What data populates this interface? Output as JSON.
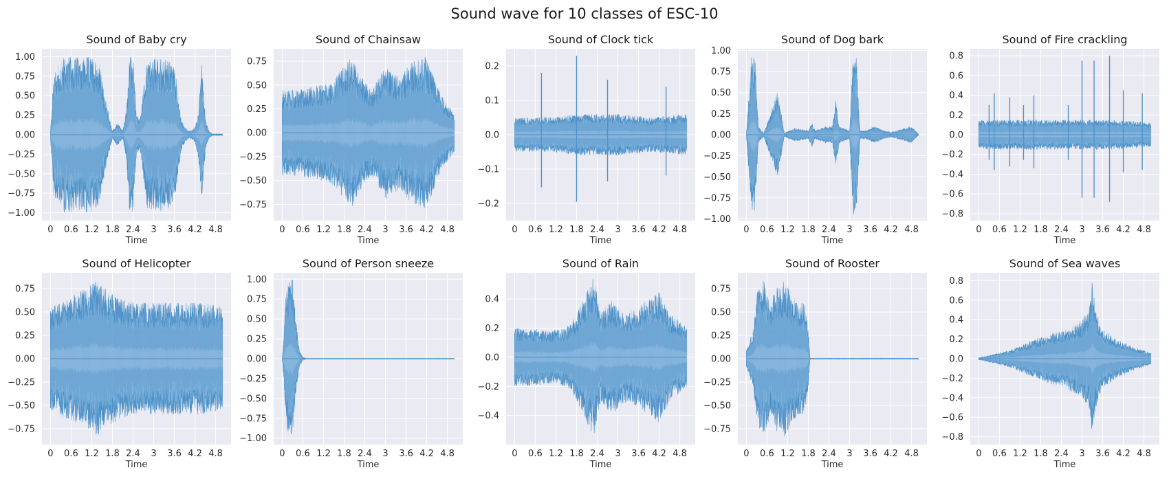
{
  "suptitle": "Sound wave for 10 classes of ESC-10",
  "chart_data": [
    {
      "type": "area",
      "title": "Sound of Baby cry",
      "xlabel": "Time",
      "xlim": [
        0,
        5
      ],
      "ylim": [
        -1.1,
        1.1
      ],
      "xticks": [
        "0",
        "0.6",
        "1.2",
        "1.8",
        "2.4",
        "3",
        "3.6",
        "4.2",
        "4.8"
      ],
      "yticks": [
        -1.0,
        -0.75,
        -0.5,
        -0.25,
        0.0,
        0.25,
        0.5,
        0.75,
        1.0
      ],
      "yticklabels": [
        "−1.00",
        "−0.75",
        "−0.50",
        "−0.25",
        "0.00",
        "0.25",
        "0.50",
        "0.75",
        "1.00"
      ],
      "envelope": {
        "t": [
          0,
          0.1,
          0.4,
          0.8,
          1.2,
          1.4,
          1.6,
          1.8,
          1.95,
          2.1,
          2.2,
          2.3,
          2.4,
          2.5,
          2.6,
          2.8,
          3.2,
          3.6,
          3.8,
          3.9,
          4.0,
          4.1,
          4.2,
          4.3,
          4.4,
          4.5,
          4.6,
          4.7,
          5.0
        ],
        "amp": [
          0.05,
          0.8,
          1.0,
          1.0,
          1.0,
          0.95,
          0.45,
          0.05,
          0.15,
          0.05,
          0.3,
          1.0,
          1.0,
          0.25,
          0.2,
          0.95,
          1.0,
          0.9,
          0.2,
          0.1,
          0.05,
          0.05,
          0.1,
          0.3,
          0.9,
          0.2,
          0.05,
          0.01,
          0.01
        ]
      }
    },
    {
      "type": "area",
      "title": "Sound of Chainsaw",
      "xlabel": "Time",
      "xlim": [
        0,
        5
      ],
      "ylim": [
        -0.92,
        0.88
      ],
      "xticks": [
        "0",
        "0.6",
        "1.2",
        "1.8",
        "2.4",
        "3",
        "3.6",
        "4.2",
        "4.8"
      ],
      "yticks": [
        -0.75,
        -0.5,
        -0.25,
        0.0,
        0.25,
        0.5,
        0.75
      ],
      "yticklabels": [
        "−0.75",
        "−0.50",
        "−0.25",
        "0.00",
        "0.25",
        "0.50",
        "0.75"
      ],
      "envelope": {
        "t": [
          0,
          0.5,
          1.0,
          1.5,
          2.0,
          2.3,
          2.6,
          3.0,
          3.4,
          3.8,
          4.2,
          4.6,
          5.0
        ],
        "amp": [
          0.45,
          0.45,
          0.5,
          0.55,
          0.8,
          0.6,
          0.45,
          0.7,
          0.6,
          0.75,
          0.8,
          0.4,
          0.2
        ]
      }
    },
    {
      "type": "area",
      "title": "Sound of Clock tick",
      "xlabel": "Time",
      "xlim": [
        0,
        5
      ],
      "ylim": [
        -0.25,
        0.25
      ],
      "xticks": [
        "0",
        "0.6",
        "1.2",
        "1.8",
        "2.4",
        "3",
        "3.6",
        "4.2",
        "4.8"
      ],
      "yticks": [
        -0.2,
        -0.1,
        0.0,
        0.1,
        0.2
      ],
      "yticklabels": [
        "−0.2",
        "−0.1",
        "0.0",
        "0.1",
        "0.2"
      ],
      "envelope": {
        "t": [
          0,
          1.0,
          2.0,
          3.0,
          4.0,
          5.0
        ],
        "amp": [
          0.05,
          0.05,
          0.06,
          0.06,
          0.05,
          0.06
        ]
      },
      "spikes": [
        {
          "t": 0.78,
          "a": 0.18
        },
        {
          "t": 1.8,
          "a": 0.23
        },
        {
          "t": 2.7,
          "a": 0.16
        },
        {
          "t": 4.4,
          "a": 0.14
        }
      ]
    },
    {
      "type": "area",
      "title": "Sound of Dog bark",
      "xlabel": "Time",
      "xlim": [
        0,
        5
      ],
      "ylim": [
        -1.02,
        1.02
      ],
      "xticks": [
        "0",
        "0.6",
        "1.2",
        "1.8",
        "2.4",
        "3",
        "3.6",
        "4.2",
        "4.8"
      ],
      "yticks": [
        -1.0,
        -0.75,
        -0.5,
        -0.25,
        0.0,
        0.25,
        0.5,
        0.75,
        1.0
      ],
      "yticklabels": [
        "−1.00",
        "−0.75",
        "−0.50",
        "−0.25",
        "0.00",
        "0.25",
        "0.50",
        "0.75",
        "1.00"
      ],
      "envelope": {
        "t": [
          0,
          0.15,
          0.25,
          0.35,
          0.5,
          0.9,
          1.0,
          1.1,
          1.4,
          1.8,
          1.9,
          2.0,
          2.3,
          2.5,
          2.6,
          2.7,
          3.0,
          3.1,
          3.2,
          3.3,
          3.5,
          3.7,
          4.0,
          4.2,
          4.4,
          4.6,
          4.8,
          4.9,
          5.0
        ],
        "amp": [
          0.02,
          0.95,
          0.95,
          0.1,
          0.02,
          0.5,
          0.3,
          0.02,
          0.08,
          0.05,
          0.15,
          0.05,
          0.1,
          0.1,
          0.4,
          0.1,
          0.05,
          0.95,
          0.95,
          0.05,
          0.05,
          0.1,
          0.05,
          0.03,
          0.05,
          0.08,
          0.1,
          0.05,
          0.01
        ]
      }
    },
    {
      "type": "area",
      "title": "Sound of Fire crackling",
      "xlabel": "Time",
      "xlim": [
        0,
        5
      ],
      "ylim": [
        -0.87,
        0.87
      ],
      "xticks": [
        "0",
        "0.6",
        "1.2",
        "1.8",
        "2.4",
        "3",
        "3.6",
        "4.2",
        "4.8"
      ],
      "yticks": [
        -0.8,
        -0.6,
        -0.4,
        -0.2,
        0.0,
        0.2,
        0.4,
        0.6,
        0.8
      ],
      "yticklabels": [
        "−0.8",
        "−0.6",
        "−0.4",
        "−0.2",
        "0.0",
        "0.2",
        "0.4",
        "0.6",
        "0.8"
      ],
      "envelope": {
        "t": [
          0,
          1.0,
          2.0,
          3.0,
          4.0,
          5.0
        ],
        "amp": [
          0.15,
          0.15,
          0.15,
          0.15,
          0.15,
          0.12
        ]
      },
      "spikes": [
        {
          "t": 0.3,
          "a": 0.3
        },
        {
          "t": 0.45,
          "a": 0.42
        },
        {
          "t": 0.9,
          "a": 0.38
        },
        {
          "t": 1.3,
          "a": 0.3
        },
        {
          "t": 1.6,
          "a": 0.4
        },
        {
          "t": 2.6,
          "a": 0.3
        },
        {
          "t": 3.0,
          "a": 0.75
        },
        {
          "t": 3.35,
          "a": 0.75
        },
        {
          "t": 3.8,
          "a": 0.8
        },
        {
          "t": 4.2,
          "a": 0.45
        },
        {
          "t": 4.75,
          "a": 0.42
        }
      ]
    },
    {
      "type": "area",
      "title": "Sound of Helicopter",
      "xlabel": "Time",
      "xlim": [
        0,
        5
      ],
      "ylim": [
        -0.92,
        0.92
      ],
      "xticks": [
        "0",
        "0.6",
        "1.2",
        "1.8",
        "2.4",
        "3",
        "3.6",
        "4.2",
        "4.8"
      ],
      "yticks": [
        -0.75,
        -0.5,
        -0.25,
        0.0,
        0.25,
        0.5,
        0.75
      ],
      "yticklabels": [
        "−0.75",
        "−0.50",
        "−0.25",
        "0.00",
        "0.25",
        "0.50",
        "0.75"
      ],
      "envelope": {
        "t": [
          0,
          0.5,
          1.0,
          1.3,
          1.6,
          2.0,
          2.5,
          3.0,
          3.5,
          4.0,
          4.5,
          5.0
        ],
        "amp": [
          0.55,
          0.65,
          0.75,
          0.85,
          0.75,
          0.65,
          0.6,
          0.6,
          0.6,
          0.6,
          0.6,
          0.55
        ]
      }
    },
    {
      "type": "area",
      "title": "Sound of Person sneeze",
      "xlabel": "Time",
      "xlim": [
        0,
        5
      ],
      "ylim": [
        -1.08,
        1.08
      ],
      "xticks": [
        "0",
        "0.6",
        "1.2",
        "1.8",
        "2.4",
        "3",
        "3.6",
        "4.2",
        "4.8"
      ],
      "yticks": [
        -1.0,
        -0.75,
        -0.5,
        -0.25,
        0.0,
        0.25,
        0.5,
        0.75,
        1.0
      ],
      "yticklabels": [
        "−1.00",
        "−0.75",
        "−0.50",
        "−0.25",
        "0.00",
        "0.25",
        "0.50",
        "0.75",
        "1.00"
      ],
      "envelope": {
        "t": [
          0,
          0.05,
          0.1,
          0.2,
          0.3,
          0.4,
          0.5,
          0.6,
          0.7,
          5.0
        ],
        "amp": [
          0.02,
          0.3,
          0.8,
          1.0,
          1.0,
          0.5,
          0.1,
          0.02,
          0.005,
          0.005
        ]
      }
    },
    {
      "type": "area",
      "title": "Sound of Rain",
      "xlabel": "Time",
      "xlim": [
        0,
        5
      ],
      "ylim": [
        -0.6,
        0.58
      ],
      "xticks": [
        "0",
        "0.6",
        "1.2",
        "1.8",
        "2.4",
        "3",
        "3.6",
        "4.2",
        "4.8"
      ],
      "yticks": [
        -0.4,
        -0.2,
        0.0,
        0.2,
        0.4
      ],
      "yticklabels": [
        "−0.4",
        "−0.2",
        "0.0",
        "0.2",
        "0.4"
      ],
      "envelope": {
        "t": [
          0,
          0.5,
          1.0,
          1.5,
          1.8,
          2.1,
          2.3,
          2.5,
          2.8,
          3.0,
          3.3,
          3.6,
          3.9,
          4.2,
          4.5,
          4.8,
          5.0
        ],
        "amp": [
          0.2,
          0.2,
          0.18,
          0.2,
          0.3,
          0.45,
          0.55,
          0.3,
          0.4,
          0.35,
          0.3,
          0.35,
          0.4,
          0.45,
          0.3,
          0.25,
          0.2
        ]
      }
    },
    {
      "type": "area",
      "title": "Sound of Rooster",
      "xlabel": "Time",
      "xlim": [
        0,
        5
      ],
      "ylim": [
        -0.92,
        0.92
      ],
      "xticks": [
        "0",
        "0.6",
        "1.2",
        "1.8",
        "2.4",
        "3",
        "3.6",
        "4.2",
        "4.8"
      ],
      "yticks": [
        -0.75,
        -0.5,
        -0.25,
        0.0,
        0.25,
        0.5,
        0.75
      ],
      "yticklabels": [
        "−0.75",
        "−0.50",
        "−0.25",
        "0.00",
        "0.25",
        "0.50",
        "0.75"
      ],
      "envelope": {
        "t": [
          0,
          0.2,
          0.3,
          0.5,
          0.7,
          0.9,
          1.0,
          1.1,
          1.3,
          1.5,
          1.7,
          1.8,
          1.85,
          5.0
        ],
        "amp": [
          0.1,
          0.3,
          0.7,
          0.85,
          0.6,
          0.8,
          0.75,
          0.85,
          0.7,
          0.6,
          0.6,
          0.3,
          0.005,
          0.005
        ]
      }
    },
    {
      "type": "area",
      "title": "Sound of Sea waves",
      "xlabel": "Time",
      "xlim": [
        0,
        5
      ],
      "ylim": [
        -0.88,
        0.88
      ],
      "xticks": [
        "0",
        "0.6",
        "1.2",
        "1.8",
        "2.4",
        "3",
        "3.6",
        "4.2",
        "4.8"
      ],
      "yticks": [
        -0.8,
        -0.6,
        -0.4,
        -0.2,
        0.0,
        0.2,
        0.4,
        0.6,
        0.8
      ],
      "yticklabels": [
        "−0.8",
        "−0.6",
        "−0.4",
        "−0.2",
        "0.0",
        "0.2",
        "0.4",
        "0.6",
        "0.8"
      ],
      "envelope": {
        "t": [
          0,
          0.5,
          1.0,
          1.5,
          2.0,
          2.5,
          3.0,
          3.2,
          3.3,
          3.4,
          3.6,
          4.0,
          4.5,
          5.0
        ],
        "amp": [
          0.01,
          0.05,
          0.1,
          0.18,
          0.25,
          0.3,
          0.4,
          0.5,
          0.8,
          0.5,
          0.3,
          0.2,
          0.12,
          0.06
        ]
      }
    }
  ]
}
